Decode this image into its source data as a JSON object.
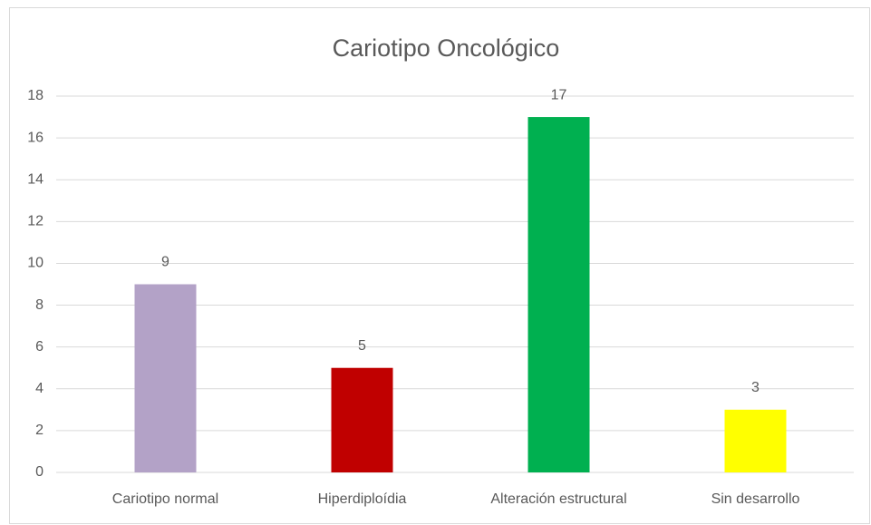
{
  "chart_data": {
    "type": "bar",
    "title": "Cariotipo Oncológico",
    "categories": [
      "Cariotipo normal",
      "Hiperdiploídia",
      "Alteración estructural",
      "Sin desarrollo"
    ],
    "values": [
      9,
      5,
      17,
      3
    ],
    "colors": [
      "#b3a2c7",
      "#c00000",
      "#00b050",
      "#ffff00"
    ],
    "ylim": [
      0,
      18
    ],
    "yticks": [
      0,
      2,
      4,
      6,
      8,
      10,
      12,
      14,
      16,
      18
    ],
    "grid": true
  }
}
